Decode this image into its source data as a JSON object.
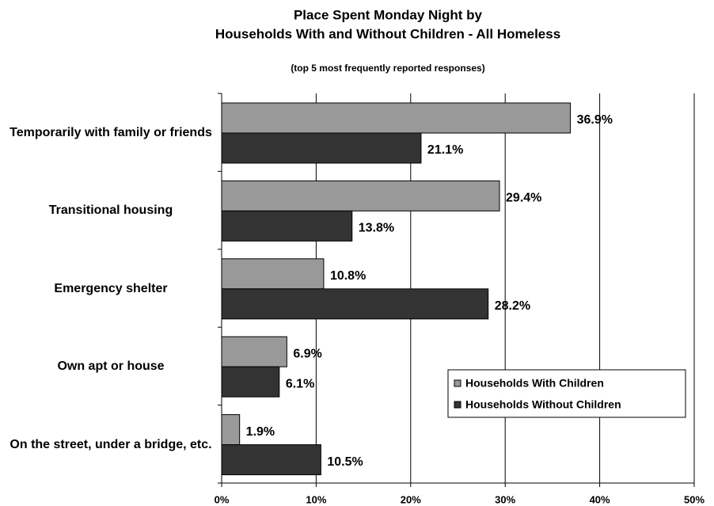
{
  "chart_data": {
    "type": "hbar",
    "title": [
      "Place Spent Monday Night by",
      "Households With and Without Children - All Homeless"
    ],
    "subtitle": "(top 5 most frequently reported responses)",
    "categories": [
      "Temporarily with family or friends",
      "Transitional housing",
      "Emergency shelter",
      "Own apt or house",
      "On the street, under a bridge, etc."
    ],
    "series": [
      {
        "name": "Households With Children",
        "color": "#999999",
        "values": [
          36.9,
          29.4,
          10.8,
          6.9,
          1.9
        ],
        "value_labels": [
          "36.9%",
          "29.4%",
          "10.8%",
          "6.9%",
          "1.9%"
        ]
      },
      {
        "name": "Households Without Children",
        "color": "#333333",
        "values": [
          21.1,
          13.8,
          28.2,
          6.1,
          10.5
        ],
        "value_labels": [
          "21.1%",
          "13.8%",
          "28.2%",
          "6.1%",
          "10.5%"
        ]
      }
    ],
    "xlim": [
      0,
      50
    ],
    "xticks": [
      {
        "value": 0,
        "label": "0%"
      },
      {
        "value": 10,
        "label": "10%"
      },
      {
        "value": 20,
        "label": "20%"
      },
      {
        "value": 30,
        "label": "30%"
      },
      {
        "value": 40,
        "label": "40%"
      },
      {
        "value": 50,
        "label": "50%"
      }
    ],
    "grid": true,
    "legend": "lower right"
  }
}
